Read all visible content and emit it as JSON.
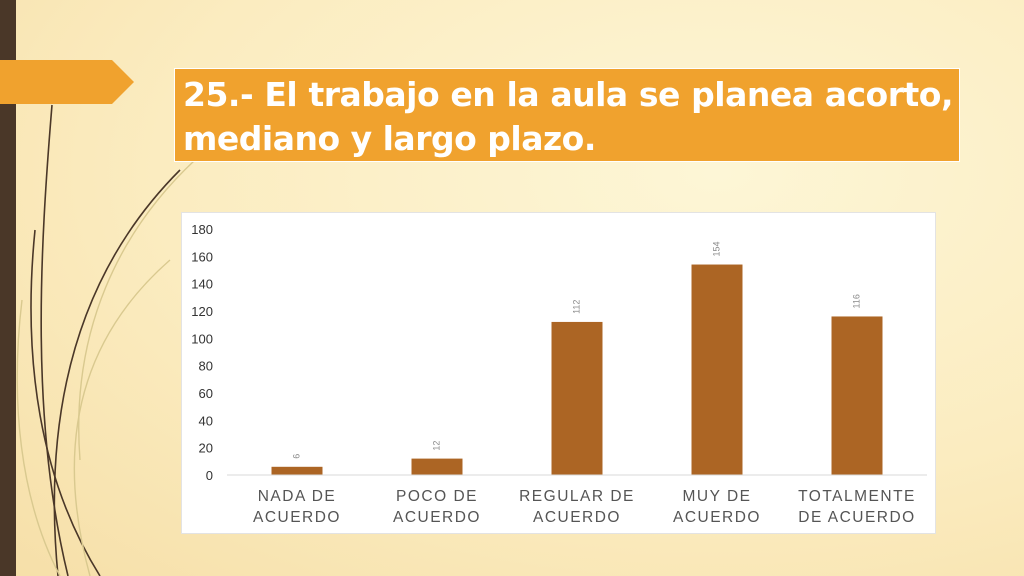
{
  "slide": {
    "title": "25.- El trabajo en la aula se planea acorto, mediano y largo plazo."
  },
  "colors": {
    "bar": "#ac6524",
    "title_bg": "#f0a22e",
    "left_bar": "#4a3728",
    "axis_text": "#333333",
    "category_text": "#555555"
  },
  "chart_data": {
    "type": "bar",
    "categories": [
      [
        "NADA DE",
        "ACUERDO"
      ],
      [
        "POCO DE",
        "ACUERDO"
      ],
      [
        "REGULAR DE",
        "ACUERDO"
      ],
      [
        "MUY DE",
        "ACUERDO"
      ],
      [
        "TOTALMENTE",
        "DE ACUERDO"
      ]
    ],
    "values": [
      6,
      12,
      112,
      154,
      116
    ],
    "data_labels": [
      "6",
      "12",
      "112",
      "154",
      "116"
    ],
    "ylim": [
      0,
      180
    ],
    "yticks": [
      0,
      20,
      40,
      60,
      80,
      100,
      120,
      140,
      160,
      180
    ],
    "grid": false,
    "legend": "none",
    "title": "",
    "xlabel": "",
    "ylabel": ""
  }
}
